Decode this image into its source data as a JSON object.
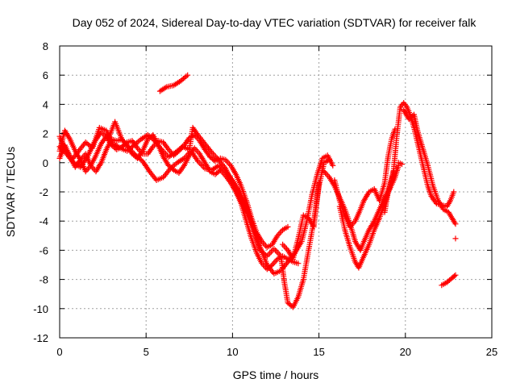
{
  "chart_data": {
    "type": "scatter",
    "title": "Day 052 of 2024, Sidereal Day-to-day VTEC variation (SDTVAR) for receiver falk",
    "xlabel": "GPS time / hours",
    "ylabel": "SDTVAR / TECUs",
    "xlim": [
      0,
      25
    ],
    "ylim": [
      -12,
      8
    ],
    "xticks": [
      0,
      5,
      10,
      15,
      20,
      25
    ],
    "yticks": [
      -12,
      -10,
      -8,
      -6,
      -4,
      -2,
      0,
      2,
      4,
      6,
      8
    ],
    "grid": true,
    "marker": "plus",
    "series_color": "#ff0000",
    "tracks": [
      [
        [
          0.0,
          0.8
        ],
        [
          0.3,
          2.2
        ],
        [
          0.6,
          1.6
        ],
        [
          0.9,
          0.8
        ],
        [
          1.2,
          0.2
        ],
        [
          1.5,
          -0.6
        ],
        [
          1.8,
          -0.2
        ],
        [
          2.1,
          0.5
        ],
        [
          2.4,
          1.3
        ],
        [
          2.7,
          1.8
        ],
        [
          3.0,
          1.2
        ],
        [
          3.3,
          0.9
        ],
        [
          3.6,
          1.1
        ],
        [
          3.9,
          1.4
        ],
        [
          4.2,
          1.5
        ],
        [
          4.5,
          1.0
        ],
        [
          4.8,
          0.6
        ],
        [
          5.1,
          0.6
        ],
        [
          5.4,
          1.1
        ],
        [
          5.7,
          1.5
        ],
        [
          6.0,
          1.4
        ],
        [
          6.3,
          0.9
        ],
        [
          6.6,
          0.5
        ],
        [
          6.9,
          0.8
        ],
        [
          7.2,
          1.2
        ],
        [
          7.5,
          1.7
        ],
        [
          7.8,
          1.9
        ],
        [
          8.1,
          1.5
        ],
        [
          8.4,
          0.9
        ],
        [
          8.7,
          0.4
        ],
        [
          9.0,
          0.1
        ],
        [
          9.3,
          0.3
        ],
        [
          9.6,
          0.2
        ],
        [
          9.9,
          -0.2
        ],
        [
          10.2,
          -0.8
        ],
        [
          10.5,
          -1.6
        ],
        [
          10.8,
          -2.6
        ],
        [
          11.1,
          -3.8
        ],
        [
          11.4,
          -4.8
        ],
        [
          11.7,
          -5.4
        ],
        [
          12.0,
          -5.8
        ],
        [
          12.3,
          -5.6
        ],
        [
          12.6,
          -5.0
        ],
        [
          12.9,
          -4.6
        ],
        [
          13.2,
          -4.4
        ]
      ],
      [
        [
          0.0,
          0.3
        ],
        [
          0.3,
          1.2
        ],
        [
          0.6,
          0.4
        ],
        [
          0.9,
          -0.3
        ],
        [
          1.2,
          0.2
        ],
        [
          1.5,
          0.6
        ],
        [
          1.8,
          -0.2
        ],
        [
          2.1,
          -0.6
        ],
        [
          2.4,
          0.0
        ],
        [
          2.7,
          0.9
        ],
        [
          3.0,
          1.6
        ],
        [
          3.3,
          1.5
        ],
        [
          3.6,
          1.6
        ],
        [
          3.9,
          1.2
        ],
        [
          4.2,
          0.6
        ],
        [
          4.5,
          0.3
        ],
        [
          4.8,
          0.8
        ],
        [
          5.1,
          1.6
        ],
        [
          5.4,
          1.9
        ],
        [
          5.7,
          1.2
        ],
        [
          6.0,
          0.4
        ],
        [
          6.3,
          -0.2
        ],
        [
          6.6,
          -0.5
        ],
        [
          6.9,
          -0.7
        ],
        [
          7.2,
          -0.2
        ],
        [
          7.5,
          0.5
        ],
        [
          7.8,
          1.0
        ],
        [
          8.1,
          0.6
        ],
        [
          8.4,
          0.0
        ],
        [
          8.7,
          -0.6
        ],
        [
          9.0,
          -0.8
        ],
        [
          9.3,
          -0.5
        ],
        [
          9.6,
          -0.9
        ],
        [
          9.9,
          -1.4
        ],
        [
          10.2,
          -2.0
        ],
        [
          10.5,
          -2.8
        ],
        [
          10.8,
          -4.0
        ],
        [
          11.1,
          -5.2
        ],
        [
          11.4,
          -6.2
        ],
        [
          11.7,
          -6.9
        ],
        [
          12.0,
          -7.3
        ],
        [
          12.3,
          -7.0
        ],
        [
          12.6,
          -6.6
        ],
        [
          12.9,
          -6.4
        ],
        [
          13.2,
          -6.6
        ],
        [
          13.5,
          -6.8
        ],
        [
          13.8,
          -6.9
        ]
      ],
      [
        [
          0.0,
          1.1
        ],
        [
          0.4,
          0.6
        ],
        [
          0.8,
          0.0
        ],
        [
          1.2,
          -0.3
        ],
        [
          1.6,
          0.4
        ],
        [
          2.0,
          1.4
        ],
        [
          2.4,
          2.1
        ],
        [
          2.8,
          1.6
        ],
        [
          3.2,
          2.8
        ],
        [
          3.6,
          1.6
        ],
        [
          4.0,
          1.0
        ],
        [
          4.4,
          0.5
        ],
        [
          4.8,
          0.1
        ],
        [
          5.2,
          -0.6
        ],
        [
          5.6,
          -1.2
        ],
        [
          6.0,
          -1.0
        ],
        [
          6.4,
          -0.4
        ],
        [
          6.8,
          0.0
        ],
        [
          7.2,
          0.3
        ],
        [
          7.6,
          0.8
        ],
        [
          8.0,
          0.1
        ],
        [
          8.4,
          -0.4
        ],
        [
          8.8,
          -0.5
        ],
        [
          9.2,
          -0.2
        ],
        [
          9.6,
          -0.6
        ],
        [
          10.0,
          -1.2
        ],
        [
          10.4,
          -2.0
        ],
        [
          10.8,
          -3.0
        ],
        [
          11.2,
          -4.4
        ],
        [
          11.6,
          -5.8
        ],
        [
          12.0,
          -7.0
        ],
        [
          12.4,
          -7.6
        ],
        [
          12.8,
          -7.4
        ],
        [
          13.2,
          -6.8
        ],
        [
          13.6,
          -6.2
        ],
        [
          14.0,
          -5.4
        ],
        [
          14.3,
          -4.0
        ],
        [
          14.6,
          -2.2
        ],
        [
          14.9,
          -0.8
        ],
        [
          15.2,
          0.3
        ],
        [
          15.5,
          0.5
        ],
        [
          15.8,
          -0.2
        ]
      ],
      [
        [
          0.0,
          1.8
        ],
        [
          0.3,
          1.0
        ],
        [
          0.7,
          0.2
        ],
        [
          1.1,
          0.8
        ],
        [
          1.5,
          1.4
        ],
        [
          1.9,
          1.0
        ],
        [
          2.3,
          2.4
        ],
        [
          2.7,
          2.2
        ],
        [
          3.1,
          1.3
        ],
        [
          3.5,
          1.0
        ],
        [
          3.9,
          0.8
        ],
        [
          4.3,
          1.2
        ],
        [
          4.7,
          1.6
        ],
        [
          5.1,
          1.9
        ],
        [
          5.5,
          1.5
        ],
        [
          5.9,
          0.9
        ],
        [
          6.3,
          0.4
        ],
        [
          6.7,
          0.7
        ],
        [
          7.1,
          1.1
        ],
        [
          7.5,
          0.9
        ],
        [
          7.7,
          2.4
        ],
        [
          8.0,
          1.9
        ],
        [
          8.4,
          1.3
        ],
        [
          8.8,
          0.7
        ],
        [
          9.2,
          0.2
        ],
        [
          9.6,
          -0.4
        ],
        [
          10.0,
          -1.4
        ],
        [
          10.4,
          -2.4
        ],
        [
          10.8,
          -3.4
        ],
        [
          11.2,
          -4.6
        ],
        [
          11.6,
          -6.0
        ],
        [
          12.0,
          -6.4
        ],
        [
          12.4,
          -5.9
        ],
        [
          12.8,
          -6.4
        ],
        [
          13.0,
          -8.2
        ],
        [
          13.2,
          -9.6
        ],
        [
          13.5,
          -9.9
        ],
        [
          13.8,
          -9.2
        ],
        [
          14.1,
          -8.0
        ],
        [
          14.4,
          -6.0
        ],
        [
          14.7,
          -4.0
        ],
        [
          15.0,
          -1.6
        ],
        [
          15.3,
          0.0
        ],
        [
          15.6,
          0.2
        ]
      ],
      [
        [
          12.9,
          -5.6
        ],
        [
          13.2,
          -6.0
        ],
        [
          13.5,
          -6.6
        ],
        [
          13.8,
          -5.2
        ],
        [
          14.1,
          -3.6
        ],
        [
          14.4,
          -3.8
        ],
        [
          14.7,
          -4.4
        ],
        [
          15.0,
          -1.4
        ]
      ],
      [
        [
          5.8,
          4.9
        ],
        [
          6.2,
          5.2
        ],
        [
          6.6,
          5.3
        ],
        [
          7.0,
          5.6
        ],
        [
          7.4,
          6.0
        ]
      ],
      [
        [
          15.3,
          -0.6
        ],
        [
          15.6,
          -1.0
        ],
        [
          15.9,
          -1.6
        ],
        [
          16.2,
          -2.4
        ],
        [
          16.5,
          -3.2
        ],
        [
          16.8,
          -4.2
        ],
        [
          17.1,
          -5.4
        ],
        [
          17.4,
          -6.0
        ],
        [
          17.6,
          -5.4
        ],
        [
          17.9,
          -4.6
        ],
        [
          18.2,
          -4.0
        ],
        [
          18.5,
          -3.2
        ],
        [
          18.8,
          -2.4
        ],
        [
          19.1,
          -1.8
        ],
        [
          19.4,
          -1.0
        ],
        [
          19.6,
          -0.2
        ]
      ],
      [
        [
          16.2,
          -3.0
        ],
        [
          16.5,
          -4.6
        ],
        [
          16.8,
          -5.8
        ],
        [
          17.1,
          -6.8
        ],
        [
          17.3,
          -7.2
        ],
        [
          17.6,
          -6.4
        ],
        [
          17.9,
          -5.6
        ],
        [
          18.2,
          -4.6
        ],
        [
          18.5,
          -3.8
        ],
        [
          18.8,
          -2.8
        ],
        [
          19.1,
          -1.6
        ],
        [
          19.3,
          -0.6
        ]
      ],
      [
        [
          15.9,
          -1.2
        ],
        [
          16.2,
          -2.6
        ],
        [
          16.5,
          -3.6
        ],
        [
          16.8,
          -4.4
        ],
        [
          17.1,
          -4.0
        ],
        [
          17.4,
          -3.2
        ],
        [
          17.6,
          -2.6
        ],
        [
          17.9,
          -2.0
        ],
        [
          18.2,
          -1.8
        ],
        [
          18.5,
          -2.6
        ],
        [
          18.8,
          -1.4
        ],
        [
          19.0,
          0.4
        ],
        [
          19.2,
          1.6
        ],
        [
          19.4,
          2.3
        ]
      ],
      [
        [
          18.8,
          -3.4
        ],
        [
          19.0,
          -2.0
        ],
        [
          19.3,
          -0.8
        ],
        [
          19.5,
          1.8
        ],
        [
          19.7,
          3.8
        ],
        [
          19.9,
          4.1
        ],
        [
          20.1,
          3.8
        ],
        [
          20.3,
          3.2
        ],
        [
          20.5,
          2.4
        ],
        [
          20.7,
          1.4
        ],
        [
          20.9,
          0.4
        ],
        [
          21.1,
          -0.6
        ],
        [
          21.3,
          -1.6
        ],
        [
          21.5,
          -2.3
        ],
        [
          21.8,
          -2.8
        ],
        [
          22.1,
          -2.9
        ],
        [
          22.4,
          -3.0
        ],
        [
          22.6,
          -2.6
        ],
        [
          22.8,
          -2.0
        ]
      ],
      [
        [
          19.9,
          3.6
        ],
        [
          20.2,
          3.0
        ],
        [
          20.5,
          3.3
        ],
        [
          20.7,
          2.2
        ],
        [
          21.0,
          1.0
        ],
        [
          21.3,
          -0.2
        ],
        [
          21.6,
          -1.6
        ],
        [
          21.9,
          -2.6
        ],
        [
          22.2,
          -3.2
        ],
        [
          22.5,
          -3.4
        ],
        [
          22.8,
          -4.0
        ],
        [
          22.9,
          -4.2
        ]
      ],
      [
        [
          19.6,
          0.0
        ],
        [
          19.8,
          -0.1
        ]
      ],
      [
        [
          22.1,
          -8.4
        ],
        [
          22.4,
          -8.2
        ],
        [
          22.7,
          -7.9
        ],
        [
          22.9,
          -7.7
        ]
      ],
      [
        [
          22.9,
          -5.2
        ]
      ]
    ]
  }
}
